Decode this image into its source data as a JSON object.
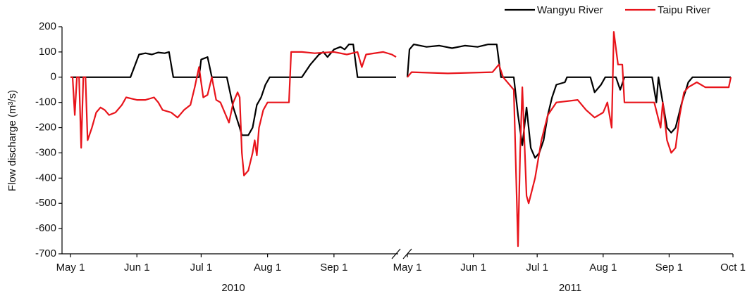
{
  "ylabel": "Flow discharge (m³/s)",
  "chart_data": [
    {
      "type": "line",
      "xlabel": "2010",
      "xlim": [
        "2010-05-01",
        "2010-09-30"
      ],
      "ylim": [
        -700,
        200
      ],
      "yticks": [
        -700,
        -600,
        -500,
        -400,
        -300,
        -200,
        -100,
        0,
        100,
        200
      ],
      "xticks": [
        {
          "value": "2010-05-01",
          "label": "May 1"
        },
        {
          "value": "2010-06-01",
          "label": "Jun 1"
        },
        {
          "value": "2010-07-01",
          "label": "Jul 1"
        },
        {
          "value": "2010-08-01",
          "label": "Aug 1"
        },
        {
          "value": "2010-09-01",
          "label": "Sep 1"
        }
      ],
      "series": [
        {
          "name": "Wangyu River",
          "color": "#000000",
          "x": [
            "2010-05-01",
            "2010-05-29",
            "2010-06-02",
            "2010-06-05",
            "2010-06-08",
            "2010-06-11",
            "2010-06-14",
            "2010-06-16",
            "2010-06-18",
            "2010-06-30",
            "2010-07-01",
            "2010-07-04",
            "2010-07-06",
            "2010-07-13",
            "2010-07-16",
            "2010-07-19",
            "2010-07-20",
            "2010-07-23",
            "2010-07-25",
            "2010-07-27",
            "2010-07-29",
            "2010-07-31",
            "2010-08-02",
            "2010-08-17",
            "2010-08-21",
            "2010-08-25",
            "2010-08-27",
            "2010-08-29",
            "2010-09-01",
            "2010-09-04",
            "2010-09-06",
            "2010-09-08",
            "2010-09-10",
            "2010-09-12",
            "2010-09-30"
          ],
          "values": [
            0,
            0,
            90,
            95,
            90,
            98,
            95,
            100,
            0,
            0,
            70,
            80,
            0,
            0,
            -120,
            -200,
            -230,
            -230,
            -200,
            -110,
            -80,
            -30,
            0,
            0,
            50,
            90,
            100,
            80,
            110,
            120,
            110,
            130,
            130,
            0,
            0
          ]
        },
        {
          "name": "Taipu River",
          "color": "#e8141b",
          "x": [
            "2010-05-01",
            "2010-05-02",
            "2010-05-03",
            "2010-05-04",
            "2010-05-05",
            "2010-05-06",
            "2010-05-07",
            "2010-05-08",
            "2010-05-09",
            "2010-05-11",
            "2010-05-13",
            "2010-05-15",
            "2010-05-17",
            "2010-05-19",
            "2010-05-22",
            "2010-05-25",
            "2010-05-27",
            "2010-06-01",
            "2010-06-05",
            "2010-06-09",
            "2010-06-11",
            "2010-06-13",
            "2010-06-17",
            "2010-06-20",
            "2010-06-23",
            "2010-06-26",
            "2010-06-28",
            "2010-06-30",
            "2010-07-02",
            "2010-07-04",
            "2010-07-06",
            "2010-07-08",
            "2010-07-10",
            "2010-07-14",
            "2010-07-16",
            "2010-07-18",
            "2010-07-19",
            "2010-07-20",
            "2010-07-21",
            "2010-07-23",
            "2010-07-25",
            "2010-07-26",
            "2010-07-27",
            "2010-07-28",
            "2010-07-30",
            "2010-08-01",
            "2010-08-11",
            "2010-08-12",
            "2010-08-17",
            "2010-08-23",
            "2010-09-01",
            "2010-09-07",
            "2010-09-12",
            "2010-09-13",
            "2010-09-14",
            "2010-09-16",
            "2010-09-24",
            "2010-09-28",
            "2010-09-30"
          ],
          "values": [
            0,
            0,
            -150,
            0,
            0,
            -280,
            0,
            0,
            -250,
            -200,
            -140,
            -120,
            -130,
            -150,
            -140,
            -110,
            -80,
            -90,
            -90,
            -80,
            -100,
            -130,
            -140,
            -160,
            -130,
            -110,
            -40,
            40,
            -80,
            -70,
            0,
            -90,
            -100,
            -180,
            -100,
            -60,
            -80,
            -300,
            -390,
            -370,
            -300,
            -250,
            -310,
            -200,
            -130,
            -100,
            -100,
            100,
            100,
            95,
            100,
            90,
            100,
            70,
            40,
            90,
            100,
            90,
            80
          ]
        }
      ]
    },
    {
      "type": "line",
      "xlabel": "2011",
      "xlim": [
        "2011-05-01",
        "2011-10-01"
      ],
      "ylim": [
        -700,
        200
      ],
      "xticks": [
        {
          "value": "2011-05-01",
          "label": "May 1"
        },
        {
          "value": "2011-06-01",
          "label": "Jun 1"
        },
        {
          "value": "2011-07-01",
          "label": "Jul 1"
        },
        {
          "value": "2011-08-01",
          "label": "Aug 1"
        },
        {
          "value": "2011-09-01",
          "label": "Sep 1"
        },
        {
          "value": "2011-10-01",
          "label": "Oct 1"
        }
      ],
      "series": [
        {
          "color": "#000000",
          "x": [
            "2011-05-01",
            "2011-05-02",
            "2011-05-04",
            "2011-05-10",
            "2011-05-16",
            "2011-05-22",
            "2011-05-28",
            "2011-06-03",
            "2011-06-08",
            "2011-06-12",
            "2011-06-14",
            "2011-06-20",
            "2011-06-22",
            "2011-06-24",
            "2011-06-26",
            "2011-06-28",
            "2011-06-30",
            "2011-07-02",
            "2011-07-04",
            "2011-07-06",
            "2011-07-08",
            "2011-07-10",
            "2011-07-14",
            "2011-07-15",
            "2011-07-26",
            "2011-07-28",
            "2011-07-31",
            "2011-08-02",
            "2011-08-07",
            "2011-08-09",
            "2011-08-11",
            "2011-08-24",
            "2011-08-26",
            "2011-08-27",
            "2011-08-31",
            "2011-09-02",
            "2011-09-04",
            "2011-09-07",
            "2011-09-10",
            "2011-09-12",
            "2011-09-30"
          ],
          "values": [
            0,
            110,
            130,
            120,
            125,
            115,
            125,
            120,
            130,
            130,
            0,
            0,
            -150,
            -270,
            -120,
            -280,
            -320,
            -300,
            -250,
            -150,
            -80,
            -30,
            -20,
            0,
            0,
            -60,
            -30,
            0,
            0,
            -50,
            0,
            0,
            -100,
            0,
            -200,
            -220,
            -200,
            -100,
            -20,
            0,
            0
          ]
        },
        {
          "color": "#e8141b",
          "x": [
            "2011-05-01",
            "2011-05-03",
            "2011-05-20",
            "2011-06-10",
            "2011-06-13",
            "2011-06-15",
            "2011-06-20",
            "2011-06-22",
            "2011-06-23",
            "2011-06-24",
            "2011-06-26",
            "2011-06-27",
            "2011-06-30",
            "2011-07-03",
            "2011-07-06",
            "2011-07-10",
            "2011-07-20",
            "2011-07-24",
            "2011-07-28",
            "2011-08-01",
            "2011-08-03",
            "2011-08-05",
            "2011-08-06",
            "2011-08-08",
            "2011-08-10",
            "2011-08-11",
            "2011-08-15",
            "2011-08-25",
            "2011-08-28",
            "2011-08-29",
            "2011-08-31",
            "2011-09-02",
            "2011-09-04",
            "2011-09-06",
            "2011-09-08",
            "2011-09-10",
            "2011-09-14",
            "2011-09-18",
            "2011-09-29",
            "2011-09-30"
          ],
          "values": [
            0,
            20,
            15,
            20,
            50,
            0,
            -50,
            -670,
            -300,
            -40,
            -470,
            -500,
            -400,
            -250,
            -150,
            -100,
            -90,
            -130,
            -160,
            -140,
            -100,
            -200,
            180,
            50,
            50,
            -100,
            -100,
            -100,
            -200,
            -100,
            -250,
            -300,
            -280,
            -150,
            -60,
            -40,
            -20,
            -40,
            -40,
            0
          ]
        }
      ]
    }
  ]
}
